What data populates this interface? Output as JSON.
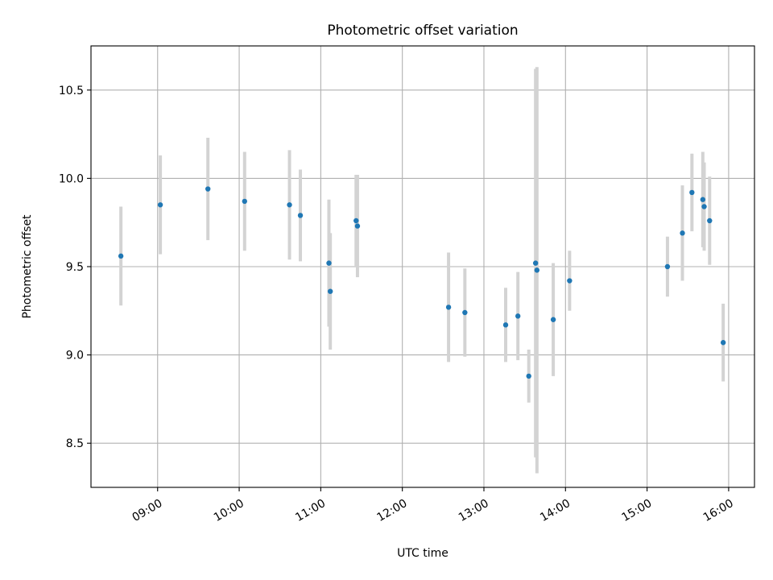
{
  "chart_data": {
    "type": "scatter",
    "title": "Photometric offset variation",
    "xlabel": "UTC time",
    "ylabel": "Photometric offset",
    "x_is_time": true,
    "xlim": [
      "08:11",
      "16:19"
    ],
    "ylim": [
      8.25,
      10.75
    ],
    "grid": true,
    "x_ticks": [
      "09:00",
      "10:00",
      "11:00",
      "12:00",
      "13:00",
      "14:00",
      "15:00",
      "16:00"
    ],
    "y_ticks": [
      "8.5",
      "9.0",
      "9.5",
      "10.0",
      "10.5"
    ],
    "colors": {
      "point": "#1f77b4",
      "errorbar": "#d3d3d3",
      "grid": "#b0b0b0"
    },
    "series": [
      {
        "points": [
          {
            "x": "08:33",
            "y": 9.56,
            "err": 0.28
          },
          {
            "x": "09:02",
            "y": 9.85,
            "err": 0.28
          },
          {
            "x": "09:37",
            "y": 9.94,
            "err": 0.29
          },
          {
            "x": "10:04",
            "y": 9.87,
            "err": 0.28
          },
          {
            "x": "10:37",
            "y": 9.85,
            "err": 0.31
          },
          {
            "x": "10:45",
            "y": 9.79,
            "err": 0.26
          },
          {
            "x": "11:06",
            "y": 9.52,
            "err": 0.36
          },
          {
            "x": "11:07",
            "y": 9.36,
            "err": 0.33
          },
          {
            "x": "11:26",
            "y": 9.76,
            "err": 0.26
          },
          {
            "x": "11:27",
            "y": 9.73,
            "err": 0.29
          },
          {
            "x": "12:34",
            "y": 9.27,
            "err": 0.31
          },
          {
            "x": "12:46",
            "y": 9.24,
            "err": 0.25
          },
          {
            "x": "13:16",
            "y": 9.17,
            "err": 0.21
          },
          {
            "x": "13:25",
            "y": 9.22,
            "err": 0.25
          },
          {
            "x": "13:33",
            "y": 8.88,
            "err": 0.15
          },
          {
            "x": "13:38",
            "y": 9.52,
            "err": 1.1
          },
          {
            "x": "13:39",
            "y": 9.48,
            "err": 1.15
          },
          {
            "x": "13:51",
            "y": 9.2,
            "err": 0.32
          },
          {
            "x": "14:03",
            "y": 9.42,
            "err": 0.17
          },
          {
            "x": "15:15",
            "y": 9.5,
            "err": 0.17
          },
          {
            "x": "15:26",
            "y": 9.69,
            "err": 0.27
          },
          {
            "x": "15:33",
            "y": 9.92,
            "err": 0.22
          },
          {
            "x": "15:41",
            "y": 9.88,
            "err": 0.27
          },
          {
            "x": "15:42",
            "y": 9.84,
            "err": 0.25
          },
          {
            "x": "15:46",
            "y": 9.76,
            "err": 0.25
          },
          {
            "x": "15:56",
            "y": 9.07,
            "err": 0.22
          }
        ]
      }
    ]
  }
}
